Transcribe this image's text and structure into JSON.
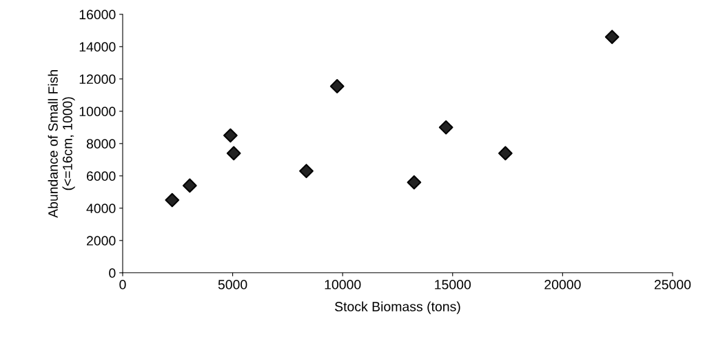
{
  "chart_data": {
    "type": "scatter",
    "xlabel": "Stock Biomass (tons)",
    "ylabel": "Abundance of Small Fish\n(<=16cm, 1000)",
    "x": [
      2250,
      3050,
      4900,
      5050,
      8350,
      9750,
      13250,
      14700,
      17400,
      22250
    ],
    "values": [
      4500,
      5400,
      8500,
      7400,
      6300,
      11550,
      5600,
      9000,
      7400,
      14600
    ],
    "color": "#222222",
    "marker": "diamond",
    "grid": false,
    "legend": false,
    "xlim": [
      0,
      25000
    ],
    "xticks": [
      0,
      5000,
      10000,
      15000,
      20000,
      25000
    ],
    "ylim": [
      0,
      16000
    ],
    "yticks": [
      0,
      2000,
      4000,
      6000,
      8000,
      10000,
      12000,
      14000,
      16000
    ]
  }
}
